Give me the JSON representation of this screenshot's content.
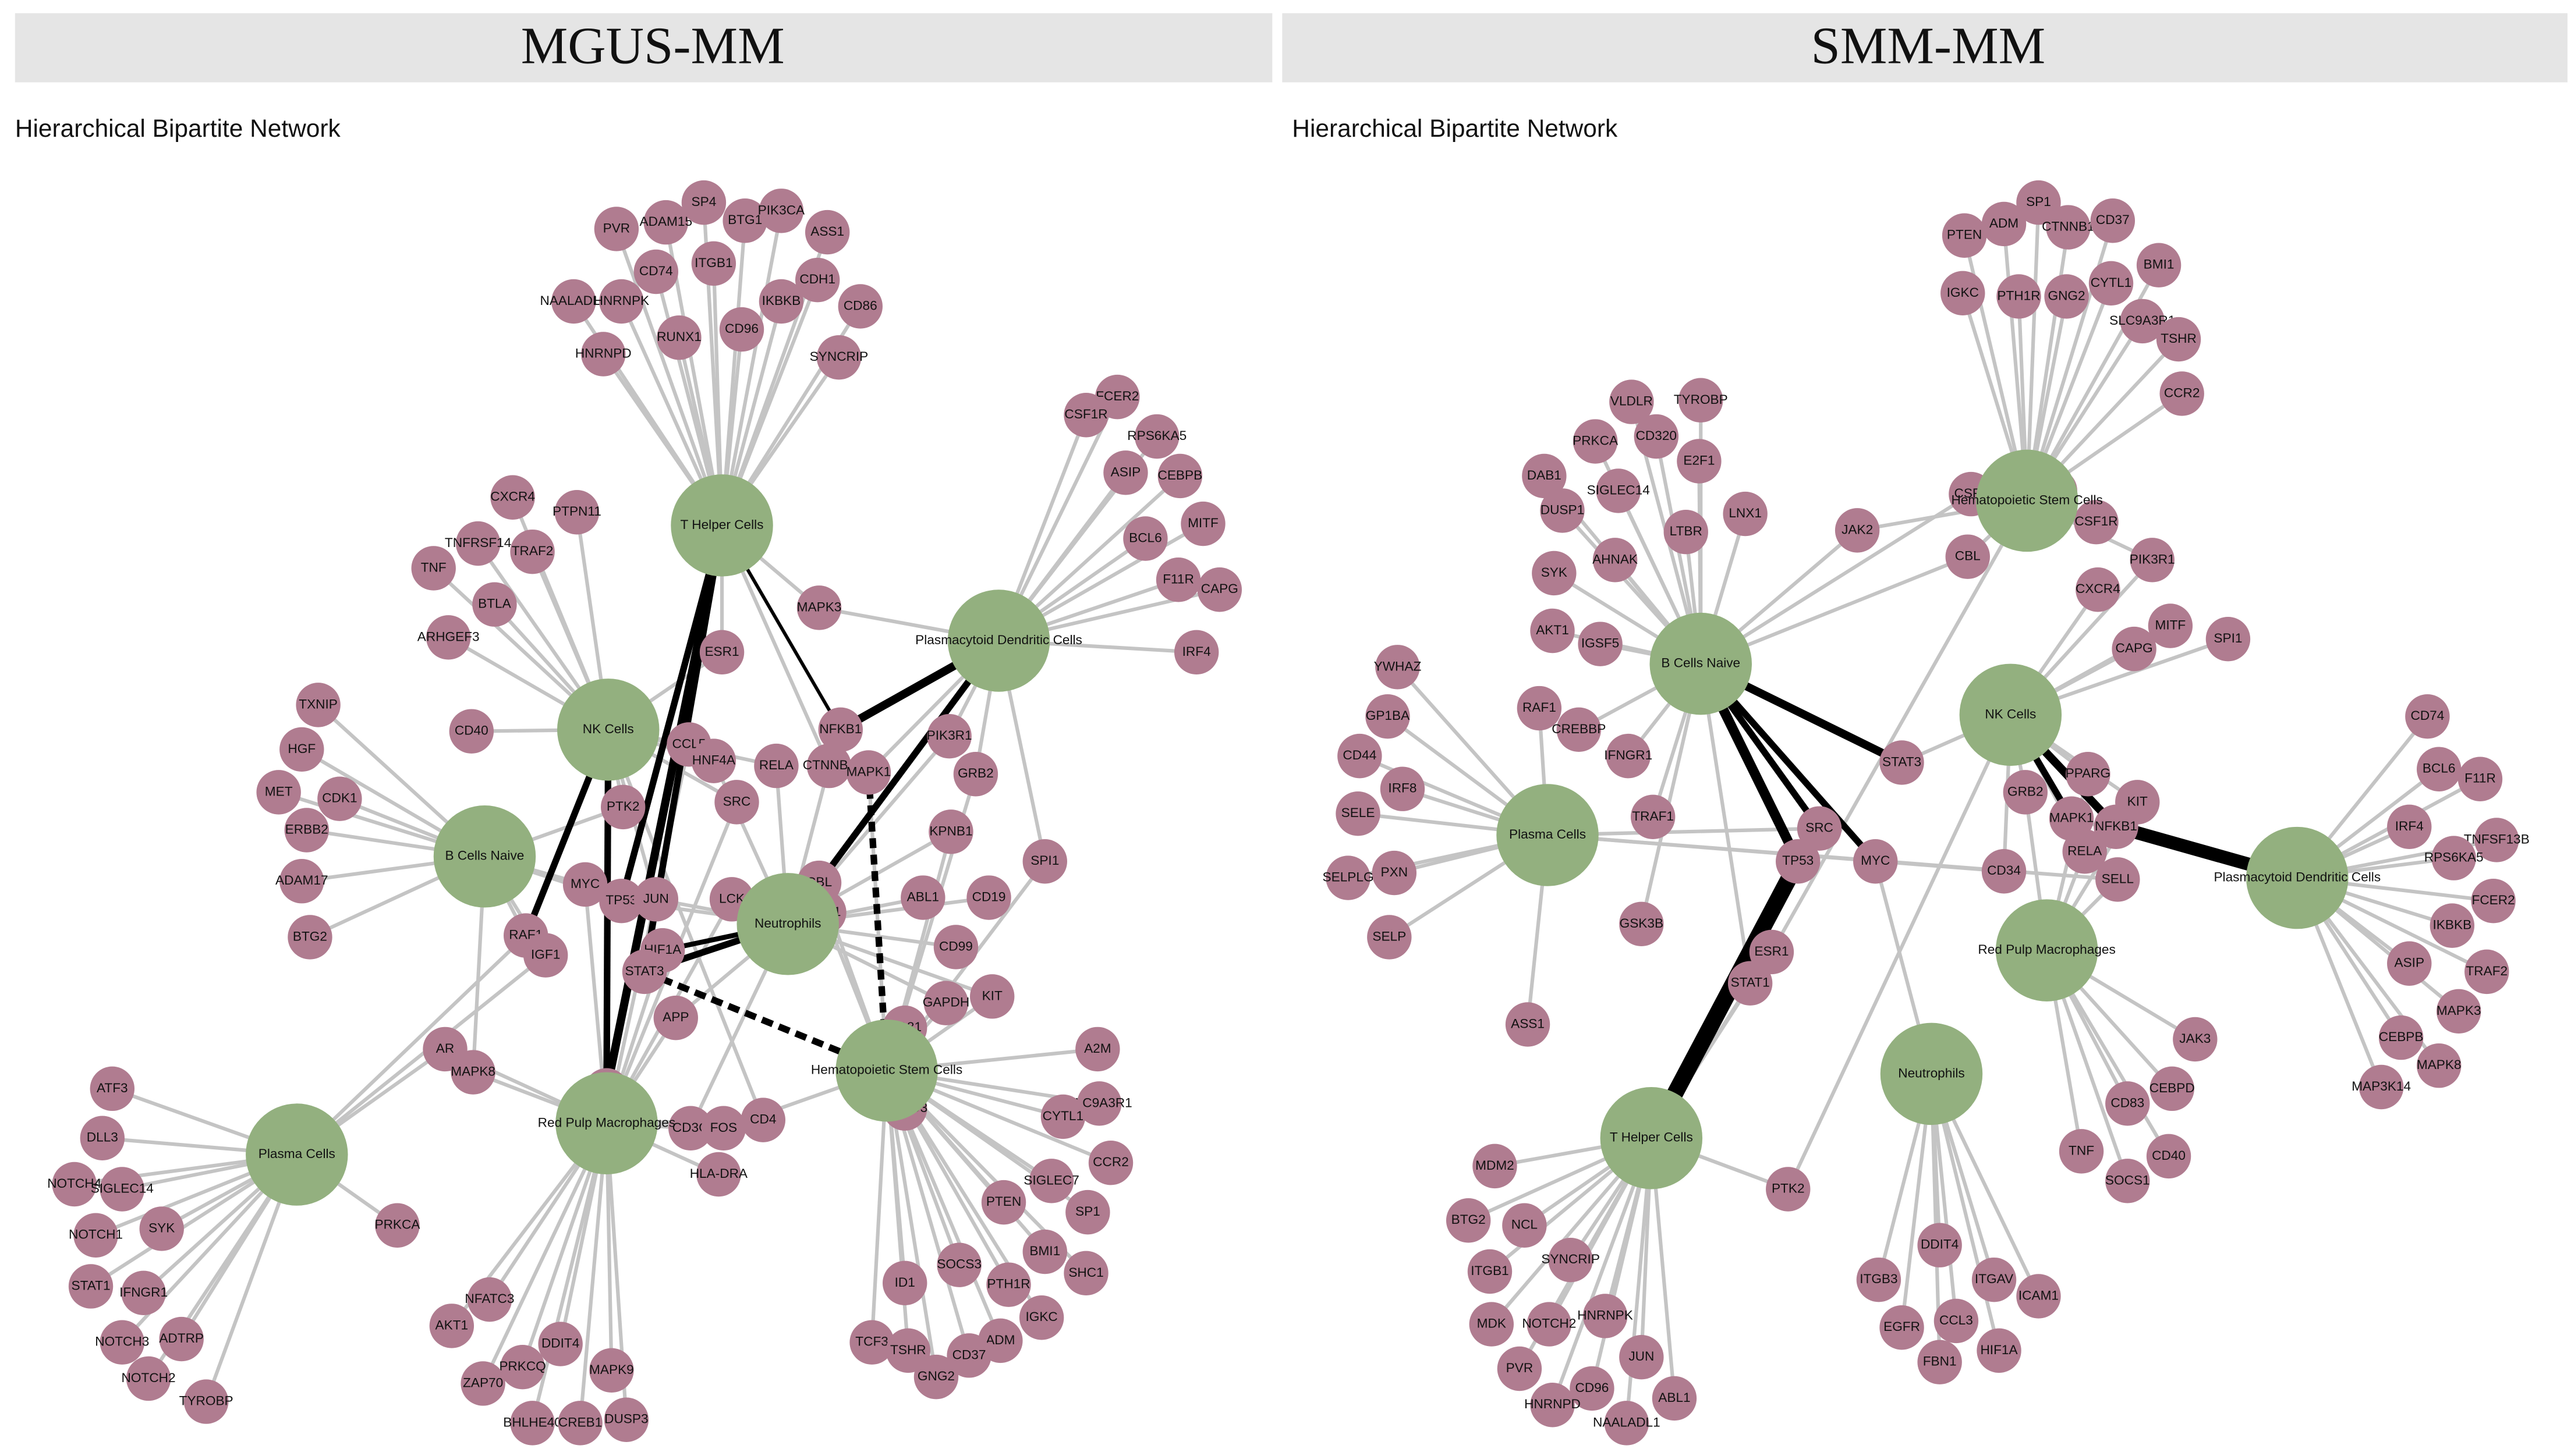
{
  "panels": [
    {
      "title": "MGUS-MM",
      "subtitle": "Hierarchical Bipartite Network",
      "hubs": [
        "T Helper Cells",
        "NK Cells",
        "Plasmacytoid Dendritic Cells",
        "B Cells Naive",
        "Neutrophils",
        "Hematopoietic Stem Cells",
        "Red Pulp Macrophages",
        "Plasma Cells"
      ],
      "genes": [
        "PVR",
        "ADAM15",
        "SP4",
        "BTG1",
        "PIK3CA",
        "ASS1",
        "CD74",
        "ITGB1",
        "CDH1",
        "NAALADL1",
        "HNRNPK",
        "IKBKB",
        "CD86",
        "RUNX1",
        "CD96",
        "HNRNPD",
        "SYNCRIP",
        "FCER2",
        "CSF1R",
        "RPS6KA5",
        "ASIP",
        "CEBPB",
        "MITF",
        "BCL6",
        "F11R",
        "CAPG",
        "IRF4",
        "CXCR4",
        "PTPN11",
        "TNFRSF14",
        "TRAF2",
        "TNF",
        "BTLA",
        "ARHGEF3",
        "CD40",
        "TXNIP",
        "HGF",
        "MET",
        "CDK1",
        "ERBB2",
        "ADAM17",
        "BTG2",
        "MAPK3",
        "ESR1",
        "CCL5",
        "HNF4A",
        "NFKB1",
        "RELA",
        "CTNNB1",
        "MAPK1",
        "PIK3R1",
        "GRB2",
        "SRC",
        "PTK2",
        "KPNB1",
        "SPI1",
        "MYC",
        "TP53",
        "JUN",
        "LCK",
        "CBL",
        "CSF1",
        "ABL1",
        "CD19",
        "RAF1",
        "IGF1",
        "HIF1A",
        "CD99",
        "STAT3",
        "GAPDH",
        "KIT",
        "APP",
        "CD81",
        "AR",
        "MAPK8",
        "JAK2",
        "CD3G",
        "FOS",
        "CD4",
        "HLA-DRA",
        "SMAD3",
        "PRKCA",
        "A2M",
        "SLC9A3R1",
        "CYTL1",
        "CCR2",
        "SIGLEC7",
        "PTEN",
        "SP1",
        "BMI1",
        "SHC1",
        "SOCS3",
        "PTH1R",
        "ID1",
        "IGKC",
        "ADM",
        "TCF3",
        "TSHR",
        "CD37",
        "GNG2",
        "NFATC3",
        "AKT1",
        "DDIT4",
        "PRKCQ",
        "ZAP70",
        "MAPK9",
        "BHLHE40",
        "CREB1",
        "DUSP3",
        "ATF3",
        "DLL3",
        "NOTCH4",
        "SIGLEC14",
        "NOTCH1",
        "SYK",
        "STAT1",
        "IFNGR1",
        "ADTRP",
        "NOTCH3",
        "NOTCH2",
        "TYROBP"
      ]
    },
    {
      "title": "SMM-MM",
      "subtitle": "Hierarchical Bipartite Network",
      "hubs": [
        "Hematopoietic Stem Cells",
        "B Cells Naive",
        "NK Cells",
        "Plasma Cells",
        "Plasmacytoid Dendritic Cells",
        "Red Pulp Macrophages",
        "Neutrophils",
        "T Helper Cells"
      ],
      "genes": [
        "SP1",
        "PTEN",
        "ADM",
        "CTNNB1",
        "CD37",
        "BMI1",
        "IGKC",
        "PTH1R",
        "GNG2",
        "CYTL1",
        "SLC9A3R1",
        "TSHR",
        "CCR2",
        "CSF1",
        "CCND1",
        "CSF1R",
        "CBL",
        "TYROBP",
        "VLDLR",
        "CD320",
        "E2F1",
        "PRKCA",
        "DAB1",
        "SIGLEC14",
        "LTBR",
        "LNX1",
        "DUSP1",
        "AHNAK",
        "SYK",
        "AKT1",
        "IGSF5",
        "CREBBP",
        "IFNGR1",
        "TRAF1",
        "JAK2",
        "YWHAZ",
        "GP1BA",
        "RAF1",
        "CD44",
        "IRF8",
        "SELE",
        "PXN",
        "SELPLG",
        "SELP",
        "PIK3R1",
        "CXCR4",
        "MITF",
        "SPI1",
        "CAPG",
        "STAT3",
        "PPARG",
        "KIT",
        "GRB2",
        "MAPK1",
        "NFKB1",
        "RELA",
        "SRC",
        "TP53",
        "MYC",
        "CD34",
        "SELL",
        "GSK3B",
        "ESR1",
        "STAT1",
        "ASS1",
        "CD74",
        "BCL6",
        "F11R",
        "IRF4",
        "TNFSF13B",
        "RPS6KA5",
        "FCER2",
        "IKBKB",
        "ASIP",
        "TRAF2",
        "MAPK3",
        "CEBPB",
        "MAPK8",
        "MAP3K14",
        "JAK3",
        "CEBPD",
        "CD83",
        "TNF",
        "CD40",
        "SOCS1",
        "DDIT4",
        "ITGB3",
        "ITGAV",
        "ICAM1",
        "EGFR",
        "CCL3",
        "FBN1",
        "HIF1A",
        "PTK2",
        "MDM2",
        "BTG2",
        "NCL",
        "SYNCRIP",
        "ITGB1",
        "MDK",
        "NOTCH2",
        "HNRNPK",
        "PVR",
        "CD96",
        "JUN",
        "HNRNPD",
        "NAALADL1",
        "ABL1"
      ]
    }
  ]
}
